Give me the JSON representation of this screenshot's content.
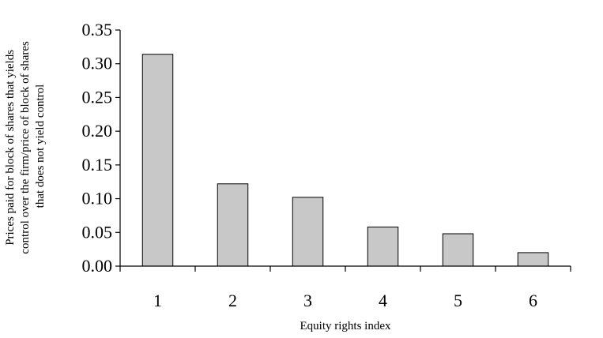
{
  "chart_data": {
    "type": "bar",
    "title": "",
    "xlabel": "Equity rights index",
    "ylabel_lines": [
      "Prices paid for block of shares that yields",
      "control over the firm/price of block of shares",
      "that does not yield control"
    ],
    "categories": [
      "1",
      "2",
      "3",
      "4",
      "5",
      "6"
    ],
    "values": [
      0.314,
      0.122,
      0.102,
      0.058,
      0.048,
      0.02
    ],
    "ylim": [
      0,
      0.35
    ],
    "yticks": [
      "0.00",
      "0.05",
      "0.10",
      "0.15",
      "0.20",
      "0.25",
      "0.30",
      "0.35"
    ],
    "grid": false,
    "legend": "none",
    "colors": {
      "bar_fill": "#c8c8c8",
      "bar_stroke": "#000000",
      "axis": "#000000"
    }
  }
}
